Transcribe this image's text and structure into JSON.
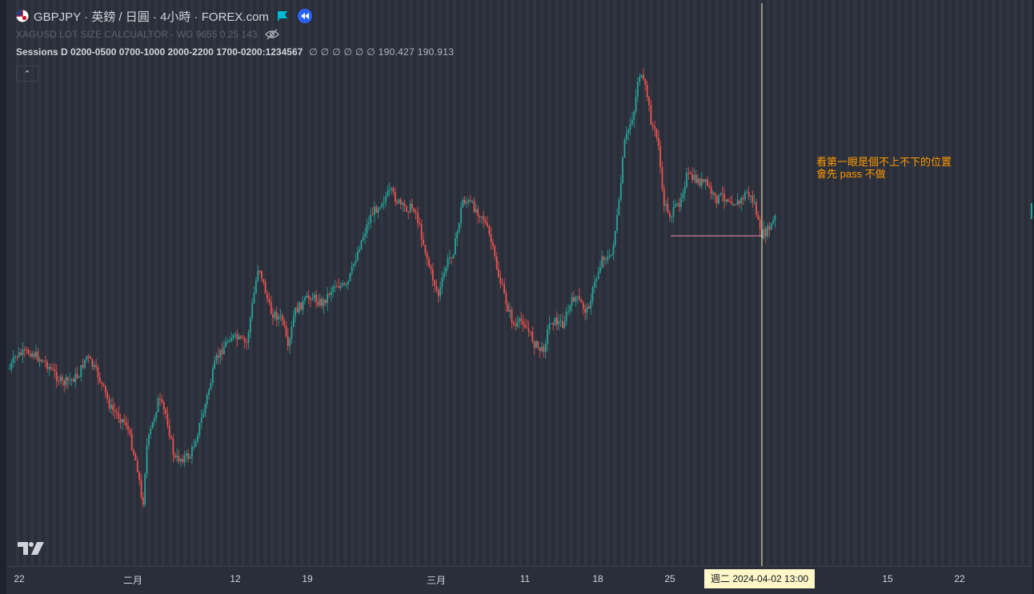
{
  "legend": {
    "symbol_title": "GBPJPY · 英鎊 / 日圓 · 4小時 · FOREX.com",
    "indicator1": "XAGUSD LOT SIZE CALCUALTOR - WG 9655 0.25 143",
    "sessions_name": "Sessions D 0200-0500 0700-1000 2000-2200 1700-0200:1234567",
    "sessions_values": "∅ ∅ ∅ ∅ ∅ ∅ 190.427 190.913",
    "collapse_glyph": "⌃"
  },
  "annotation": {
    "line1": "看第一眼是個不上不下的位置",
    "line2": "會先 pass 不做"
  },
  "time_axis": {
    "labels": [
      "22",
      "二月",
      "12",
      "19",
      "三月",
      "11",
      "18",
      "25",
      "15",
      "22"
    ],
    "cursor_label": "週二 2024-04-02 13:00"
  },
  "colors": {
    "background": "#2a2e39",
    "up": "#26a69a",
    "down": "#ef5350",
    "crosshair": "#fff9c4",
    "annotation": "#ff9800",
    "level_line": "#f48fb1",
    "replay": "#2962ff",
    "flag": "#00bcd4"
  },
  "icons": [
    "gbpjpy-flag-icon",
    "flag-icon",
    "replay-icon",
    "eye-hidden-icon",
    "chevron-up-icon",
    "tradingview-logo-icon"
  ]
}
